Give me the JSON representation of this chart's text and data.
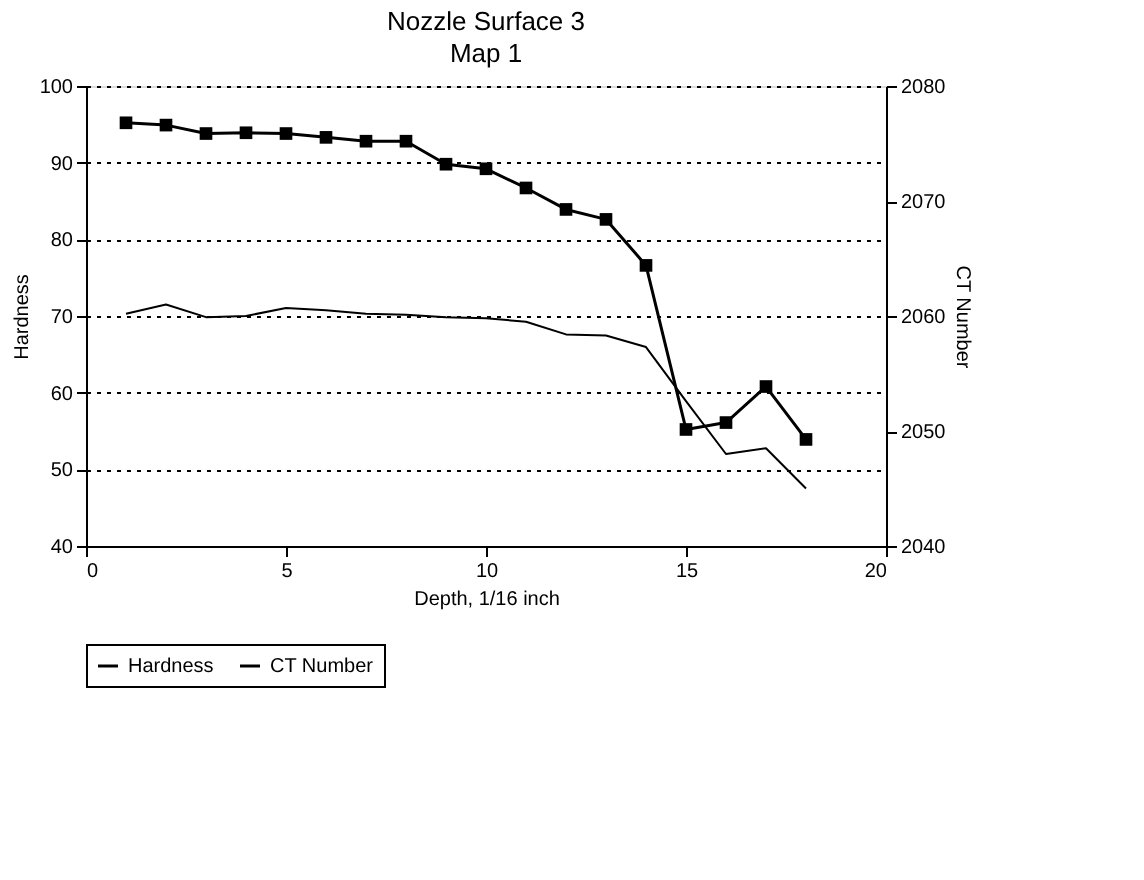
{
  "chart_data": {
    "type": "line",
    "title": "Nozzle Surface 3",
    "subtitle": "Map 1",
    "xlabel": "Depth, 1/16 inch",
    "ylabel": "Hardness",
    "y2label": "CT Number",
    "x": [
      1,
      2,
      3,
      4,
      5,
      6,
      7,
      8,
      9,
      10,
      11,
      12,
      13,
      14,
      15,
      16,
      17,
      18
    ],
    "series": [
      {
        "name": "Hardness",
        "color": "#000000",
        "marker": "square",
        "values": [
          95.2,
          94.9,
          93.8,
          93.9,
          93.8,
          93.3,
          92.8,
          92.8,
          89.8,
          89.2,
          86.7,
          83.9,
          82.6,
          76.6,
          55.2,
          56.1,
          60.8,
          53.9
        ]
      },
      {
        "name": "CT Number",
        "color": "#000000",
        "marker": "none",
        "axis": "y2",
        "values": [
          2060.2,
          2061,
          2059.9,
          2060,
          2060.7,
          2060.5,
          2060.2,
          2060.1,
          2059.9,
          2059.8,
          2059.5,
          2058.4,
          2058.3,
          2057.3,
          2052.6,
          2048,
          2048.5,
          2045
        ]
      }
    ],
    "xlim": [
      0,
      20
    ],
    "xticks": [
      0,
      5,
      10,
      15,
      20
    ],
    "ylim": [
      40,
      100
    ],
    "yticks": [
      40,
      50,
      60,
      70,
      80,
      90,
      100
    ],
    "y2lim": [
      2040,
      2080
    ],
    "y2ticks": [
      2040,
      2050,
      2060,
      2070,
      2080
    ],
    "grid": "y",
    "legend": "bottom",
    "line_style": "solid"
  }
}
